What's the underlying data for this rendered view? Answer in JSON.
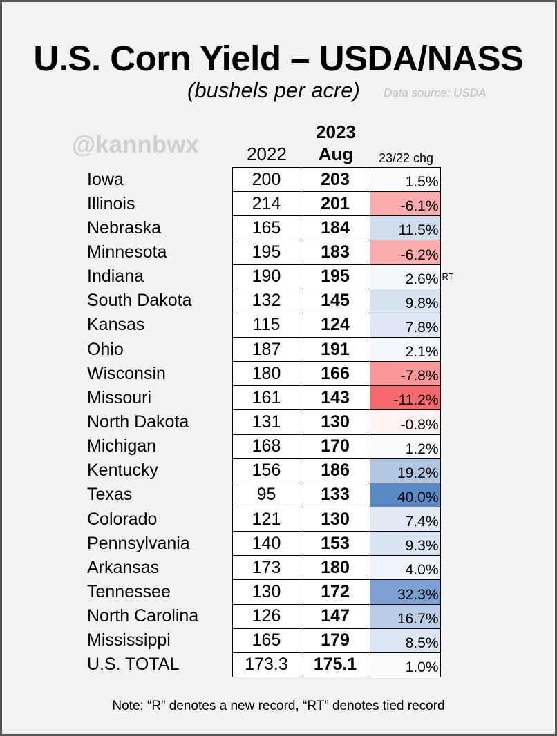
{
  "chart_data": {
    "type": "table",
    "title": "U.S. Corn Yield – USDA/NASS",
    "subtitle": "(bushels per acre)",
    "source": "Data source: USDA",
    "watermark": "@kannbwx",
    "columns": {
      "y2022": "2022",
      "y2023_top": "2023",
      "y2023_bottom": "Aug",
      "chg": "23/22 chg"
    },
    "rows": [
      {
        "state": "Iowa",
        "y2022": "200",
        "y2023": "203",
        "chg": "1.5%",
        "chg_value": 1.5,
        "flag": ""
      },
      {
        "state": "Illinois",
        "y2022": "214",
        "y2023": "201",
        "chg": "-6.1%",
        "chg_value": -6.1,
        "flag": ""
      },
      {
        "state": "Nebraska",
        "y2022": "165",
        "y2023": "184",
        "chg": "11.5%",
        "chg_value": 11.5,
        "flag": ""
      },
      {
        "state": "Minnesota",
        "y2022": "195",
        "y2023": "183",
        "chg": "-6.2%",
        "chg_value": -6.2,
        "flag": ""
      },
      {
        "state": "Indiana",
        "y2022": "190",
        "y2023": "195",
        "chg": "2.6%",
        "chg_value": 2.6,
        "flag": "RT"
      },
      {
        "state": "South Dakota",
        "y2022": "132",
        "y2023": "145",
        "chg": "9.8%",
        "chg_value": 9.8,
        "flag": ""
      },
      {
        "state": "Kansas",
        "y2022": "115",
        "y2023": "124",
        "chg": "7.8%",
        "chg_value": 7.8,
        "flag": ""
      },
      {
        "state": "Ohio",
        "y2022": "187",
        "y2023": "191",
        "chg": "2.1%",
        "chg_value": 2.1,
        "flag": ""
      },
      {
        "state": "Wisconsin",
        "y2022": "180",
        "y2023": "166",
        "chg": "-7.8%",
        "chg_value": -7.8,
        "flag": ""
      },
      {
        "state": "Missouri",
        "y2022": "161",
        "y2023": "143",
        "chg": "-11.2%",
        "chg_value": -11.2,
        "flag": ""
      },
      {
        "state": "North Dakota",
        "y2022": "131",
        "y2023": "130",
        "chg": "-0.8%",
        "chg_value": -0.8,
        "flag": ""
      },
      {
        "state": "Michigan",
        "y2022": "168",
        "y2023": "170",
        "chg": "1.2%",
        "chg_value": 1.2,
        "flag": ""
      },
      {
        "state": "Kentucky",
        "y2022": "156",
        "y2023": "186",
        "chg": "19.2%",
        "chg_value": 19.2,
        "flag": ""
      },
      {
        "state": "Texas",
        "y2022": "95",
        "y2023": "133",
        "chg": "40.0%",
        "chg_value": 40.0,
        "flag": ""
      },
      {
        "state": "Colorado",
        "y2022": "121",
        "y2023": "130",
        "chg": "7.4%",
        "chg_value": 7.4,
        "flag": ""
      },
      {
        "state": "Pennsylvania",
        "y2022": "140",
        "y2023": "153",
        "chg": "9.3%",
        "chg_value": 9.3,
        "flag": ""
      },
      {
        "state": "Arkansas",
        "y2022": "173",
        "y2023": "180",
        "chg": "4.0%",
        "chg_value": 4.0,
        "flag": ""
      },
      {
        "state": "Tennessee",
        "y2022": "130",
        "y2023": "172",
        "chg": "32.3%",
        "chg_value": 32.3,
        "flag": ""
      },
      {
        "state": "North Carolina",
        "y2022": "126",
        "y2023": "147",
        "chg": "16.7%",
        "chg_value": 16.7,
        "flag": ""
      },
      {
        "state": "Mississippi",
        "y2022": "165",
        "y2023": "179",
        "chg": "8.5%",
        "chg_value": 8.5,
        "flag": ""
      },
      {
        "state": "U.S. TOTAL",
        "y2022": "173.3",
        "y2023": "175.1",
        "chg": "1.0%",
        "chg_value": 1.0,
        "flag": ""
      }
    ],
    "note": "Note: “R” denotes a new record, “RT” denotes tied record",
    "colors": {
      "negative": "#f8696b",
      "positive": "#5a8ac6",
      "neutral": "#ffffff"
    }
  }
}
